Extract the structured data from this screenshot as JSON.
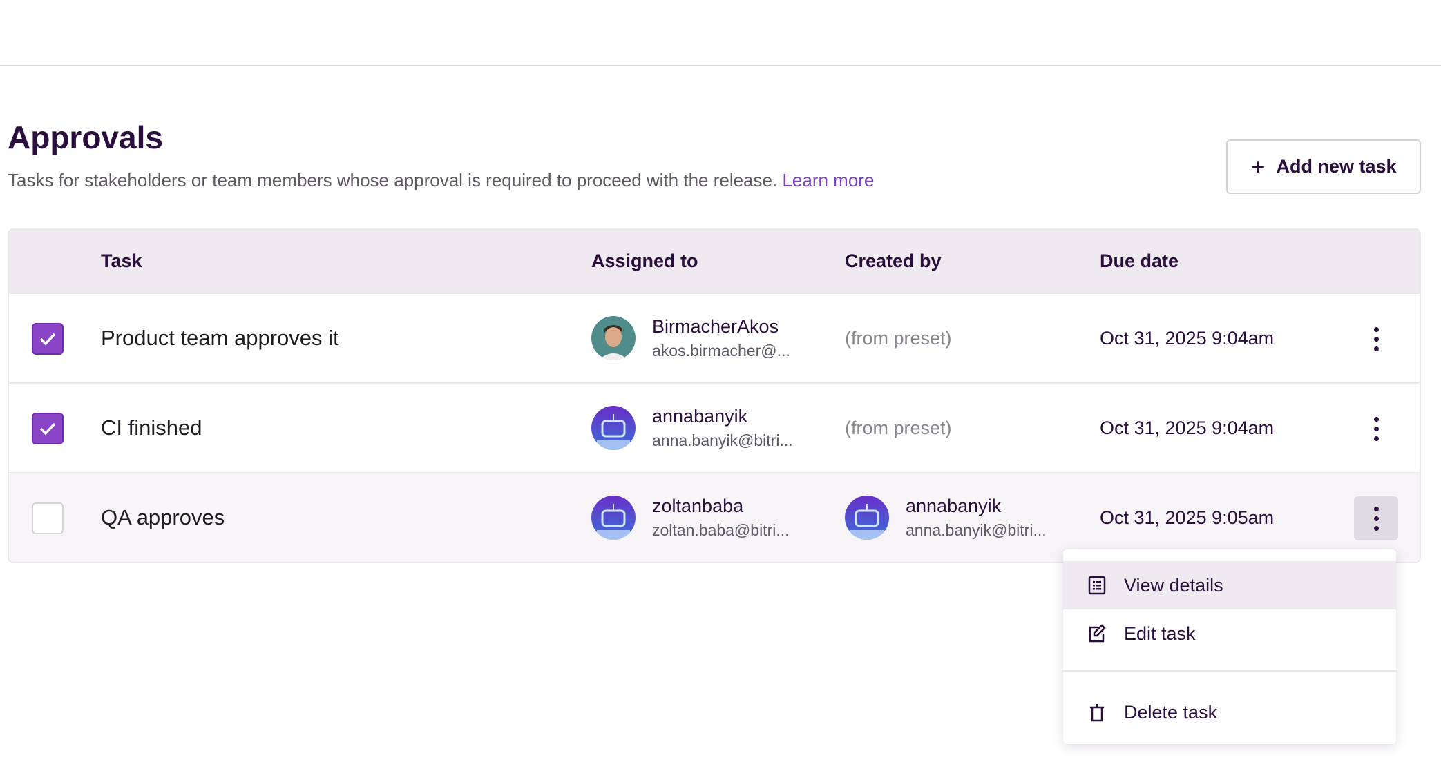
{
  "page": {
    "title": "Approvals",
    "description": "Tasks for stakeholders or team members whose approval is required to proceed with the release.",
    "learn_more": "Learn more",
    "add_button": "Add new task",
    "accent": "#8844c4"
  },
  "table": {
    "columns": [
      "Task",
      "Assigned to",
      "Created by",
      "Due date"
    ],
    "rows": [
      {
        "checked": true,
        "task": "Product team approves it",
        "assignee": {
          "name": "BirmacherAkos",
          "email": "akos.birmacher@...",
          "avatar": "photo"
        },
        "created_by": {
          "text": "(from preset)"
        },
        "due": "Oct 31, 2025 9:04am"
      },
      {
        "checked": true,
        "task": "CI finished",
        "assignee": {
          "name": "annabanyik",
          "email": "anna.banyik@bitri...",
          "avatar": "robot"
        },
        "created_by": {
          "text": "(from preset)"
        },
        "due": "Oct 31, 2025 9:04am"
      },
      {
        "checked": false,
        "task": "QA approves",
        "assignee": {
          "name": "zoltanbaba",
          "email": "zoltan.baba@bitri...",
          "avatar": "robot"
        },
        "created_by": {
          "name": "annabanyik",
          "email": "anna.banyik@bitri...",
          "avatar": "robot"
        },
        "due": "Oct 31, 2025 9:05am"
      }
    ]
  },
  "menu": {
    "items": [
      {
        "label": "View details",
        "icon": "list-icon"
      },
      {
        "label": "Edit task",
        "icon": "edit-icon"
      },
      {
        "label": "Delete task",
        "icon": "trash-icon"
      }
    ]
  }
}
